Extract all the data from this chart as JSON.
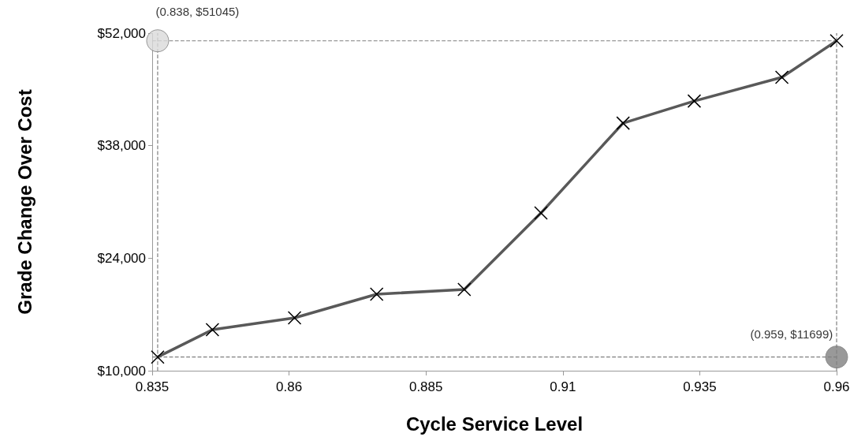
{
  "chart_data": {
    "type": "line",
    "xlabel": "Cycle Service Level",
    "ylabel": "Grade Change Over Cost",
    "x": [
      0.836,
      0.846,
      0.861,
      0.876,
      0.892,
      0.906,
      0.921,
      0.934,
      0.95,
      0.96
    ],
    "series": [
      {
        "color": "#595959",
        "marker": "cross",
        "values": [
          11699,
          15100,
          16570,
          19520,
          20100,
          29620,
          40800,
          43550,
          46500,
          51045
        ]
      },
      {
        "type": "scatter",
        "color": "#d9d9d9",
        "marker": "circle",
        "x": [
          0.836
        ],
        "values": [
          51045
        ],
        "value_labels": [
          "(0.838, $51045)"
        ]
      },
      {
        "type": "scatter",
        "color": "#7f7f7f",
        "marker": "circle",
        "x": [
          0.96
        ],
        "values": [
          11699
        ],
        "value_labels": [
          "(0.959, $11699)"
        ]
      }
    ],
    "xlim": [
      0.835,
      0.96
    ],
    "xticks": [
      0.835,
      0.86,
      0.885,
      0.91,
      0.935,
      0.96
    ],
    "ylim": [
      10000,
      52000
    ],
    "yticks": [
      {
        "value": 10000,
        "label": "$10,000"
      },
      {
        "value": 24000,
        "label": "$24,000"
      },
      {
        "value": 38000,
        "label": "$38,000"
      },
      {
        "value": 52000,
        "label": "$52,000"
      }
    ],
    "ref_lines": [
      {
        "axis": "y",
        "value": 51045,
        "color": "#7f7f7f",
        "line_style": "dashed"
      },
      {
        "axis": "y",
        "value": 11699,
        "color": "#7f7f7f",
        "line_style": "dashed"
      },
      {
        "axis": "x",
        "value": 0.836,
        "color": "#7f7f7f",
        "line_style": "dashed"
      },
      {
        "axis": "x",
        "value": 0.96,
        "color": "#7f7f7f",
        "line_style": "dashed"
      }
    ],
    "grid": false
  }
}
